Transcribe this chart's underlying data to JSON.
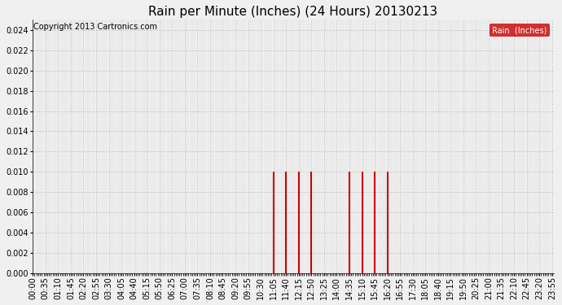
{
  "title": "Rain per Minute (Inches) (24 Hours) 20130213",
  "copyright_text": "Copyright 2013 Cartronics.com",
  "legend_label": "Rain  (Inches)",
  "legend_bg": "#cc0000",
  "legend_fg": "#ffffff",
  "line_color": "#cc0000",
  "bg_color": "#f0f0f0",
  "grid_color": "#bbbbbb",
  "ylim": [
    0.0,
    0.025
  ],
  "yticks": [
    0.0,
    0.002,
    0.004,
    0.006,
    0.008,
    0.01,
    0.012,
    0.014,
    0.016,
    0.018,
    0.02,
    0.022,
    0.024
  ],
  "total_minutes": 1440,
  "xtick_interval": 35,
  "rain_data": {
    "665": 0.01,
    "700": 0.01,
    "735": 0.01,
    "770": 0.01,
    "875": 0.01,
    "910": 0.01,
    "945": 0.01,
    "980": 0.01
  },
  "title_fontsize": 11,
  "copyright_fontsize": 7,
  "tick_fontsize": 7,
  "ytick_fontsize": 7,
  "fig_width": 6.9,
  "fig_height": 3.75,
  "dpi": 100
}
